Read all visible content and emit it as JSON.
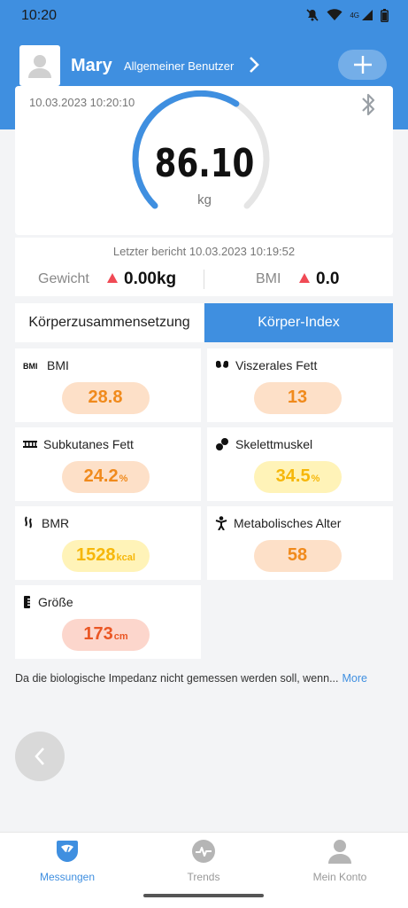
{
  "status_bar": {
    "time": "10:20",
    "network": "4G"
  },
  "header": {
    "user_name": "Mary",
    "user_type": "Allgemeiner Benutzer"
  },
  "weight": {
    "date": "10.03.2023 10:20:10",
    "value": "86.10",
    "unit": "kg",
    "gauge_fraction": 0.62
  },
  "comparison": {
    "last_report": "Letzter bericht 10.03.2023 10:19:52",
    "weight_label": "Gewicht",
    "weight_delta": "0.00kg",
    "bmi_label": "BMI",
    "bmi_delta": "0.0"
  },
  "tabs": {
    "composition": "Körperzusammensetzung",
    "index": "Körper-Index",
    "active": "index"
  },
  "metrics": [
    {
      "label": "BMI",
      "icon": "bmi-icon",
      "value": "28.8",
      "unit": "",
      "level": "orange"
    },
    {
      "label": "Viszerales Fett",
      "icon": "visceral-fat-icon",
      "value": "13",
      "unit": "",
      "level": "orange"
    },
    {
      "label": "Subkutanes Fett",
      "icon": "subcutaneous-fat-icon",
      "value": "24.2",
      "unit": "%",
      "level": "orange"
    },
    {
      "label": "Skelettmuskel",
      "icon": "muscle-icon",
      "value": "34.5",
      "unit": "%",
      "level": "yellow"
    },
    {
      "label": "BMR",
      "icon": "bmr-icon",
      "value": "1528",
      "unit": "kcal",
      "level": "yellow"
    },
    {
      "label": "Metabolisches Alter",
      "icon": "metabolic-age-icon",
      "value": "58",
      "unit": "",
      "level": "orange"
    },
    {
      "label": "Größe",
      "icon": "height-icon",
      "value": "173",
      "unit": "cm",
      "level": "red"
    }
  ],
  "disclaimer": {
    "text": "Da die biologische Impedanz nicht gemessen werden soll, wenn...",
    "more": "More"
  },
  "bottom_nav": [
    {
      "label": "Messungen",
      "icon": "scale-icon",
      "active": true
    },
    {
      "label": "Trends",
      "icon": "trends-icon",
      "active": false
    },
    {
      "label": "Mein Konto",
      "icon": "account-icon",
      "active": false
    }
  ],
  "colors": {
    "accent": "#3f8fe0",
    "orange": "#f08a1c",
    "yellow": "#f6b70a",
    "red": "#ea5624"
  }
}
